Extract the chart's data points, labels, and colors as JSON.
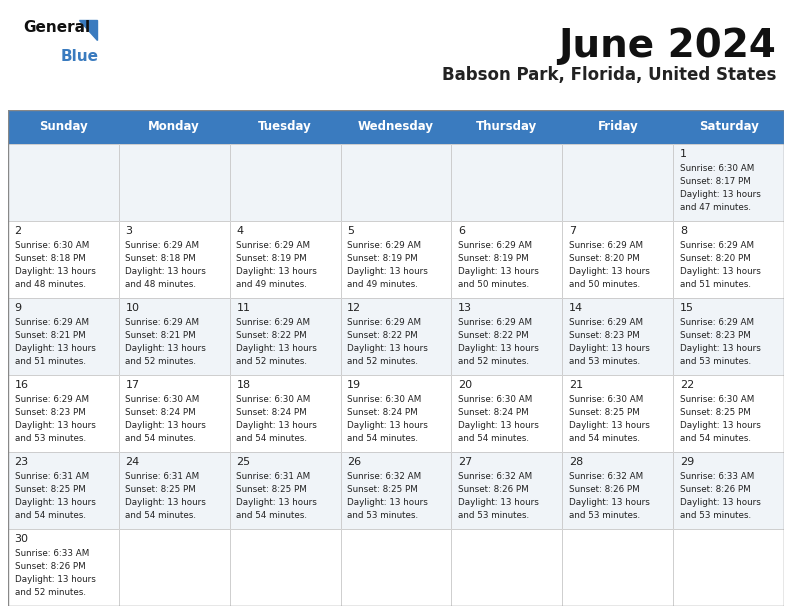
{
  "title": "June 2024",
  "subtitle": "Babson Park, Florida, United States",
  "days_of_week": [
    "Sunday",
    "Monday",
    "Tuesday",
    "Wednesday",
    "Thursday",
    "Friday",
    "Saturday"
  ],
  "header_bg": "#3a7bbf",
  "header_text": "#ffffff",
  "odd_row_bg": "#f0f4f8",
  "even_row_bg": "#ffffff",
  "cell_text_color": "#222222",
  "border_color": "#aaaaaa",
  "calendar_data": [
    [
      null,
      null,
      null,
      null,
      null,
      null,
      {
        "day": 1,
        "sunrise": "6:30 AM",
        "sunset": "8:17 PM",
        "daylight": "13 hours and 47 minutes."
      }
    ],
    [
      {
        "day": 2,
        "sunrise": "6:30 AM",
        "sunset": "8:18 PM",
        "daylight": "13 hours and 48 minutes."
      },
      {
        "day": 3,
        "sunrise": "6:29 AM",
        "sunset": "8:18 PM",
        "daylight": "13 hours and 48 minutes."
      },
      {
        "day": 4,
        "sunrise": "6:29 AM",
        "sunset": "8:19 PM",
        "daylight": "13 hours and 49 minutes."
      },
      {
        "day": 5,
        "sunrise": "6:29 AM",
        "sunset": "8:19 PM",
        "daylight": "13 hours and 49 minutes."
      },
      {
        "day": 6,
        "sunrise": "6:29 AM",
        "sunset": "8:19 PM",
        "daylight": "13 hours and 50 minutes."
      },
      {
        "day": 7,
        "sunrise": "6:29 AM",
        "sunset": "8:20 PM",
        "daylight": "13 hours and 50 minutes."
      },
      {
        "day": 8,
        "sunrise": "6:29 AM",
        "sunset": "8:20 PM",
        "daylight": "13 hours and 51 minutes."
      }
    ],
    [
      {
        "day": 9,
        "sunrise": "6:29 AM",
        "sunset": "8:21 PM",
        "daylight": "13 hours and 51 minutes."
      },
      {
        "day": 10,
        "sunrise": "6:29 AM",
        "sunset": "8:21 PM",
        "daylight": "13 hours and 52 minutes."
      },
      {
        "day": 11,
        "sunrise": "6:29 AM",
        "sunset": "8:22 PM",
        "daylight": "13 hours and 52 minutes."
      },
      {
        "day": 12,
        "sunrise": "6:29 AM",
        "sunset": "8:22 PM",
        "daylight": "13 hours and 52 minutes."
      },
      {
        "day": 13,
        "sunrise": "6:29 AM",
        "sunset": "8:22 PM",
        "daylight": "13 hours and 52 minutes."
      },
      {
        "day": 14,
        "sunrise": "6:29 AM",
        "sunset": "8:23 PM",
        "daylight": "13 hours and 53 minutes."
      },
      {
        "day": 15,
        "sunrise": "6:29 AM",
        "sunset": "8:23 PM",
        "daylight": "13 hours and 53 minutes."
      }
    ],
    [
      {
        "day": 16,
        "sunrise": "6:29 AM",
        "sunset": "8:23 PM",
        "daylight": "13 hours and 53 minutes."
      },
      {
        "day": 17,
        "sunrise": "6:30 AM",
        "sunset": "8:24 PM",
        "daylight": "13 hours and 54 minutes."
      },
      {
        "day": 18,
        "sunrise": "6:30 AM",
        "sunset": "8:24 PM",
        "daylight": "13 hours and 54 minutes."
      },
      {
        "day": 19,
        "sunrise": "6:30 AM",
        "sunset": "8:24 PM",
        "daylight": "13 hours and 54 minutes."
      },
      {
        "day": 20,
        "sunrise": "6:30 AM",
        "sunset": "8:24 PM",
        "daylight": "13 hours and 54 minutes."
      },
      {
        "day": 21,
        "sunrise": "6:30 AM",
        "sunset": "8:25 PM",
        "daylight": "13 hours and 54 minutes."
      },
      {
        "day": 22,
        "sunrise": "6:30 AM",
        "sunset": "8:25 PM",
        "daylight": "13 hours and 54 minutes."
      }
    ],
    [
      {
        "day": 23,
        "sunrise": "6:31 AM",
        "sunset": "8:25 PM",
        "daylight": "13 hours and 54 minutes."
      },
      {
        "day": 24,
        "sunrise": "6:31 AM",
        "sunset": "8:25 PM",
        "daylight": "13 hours and 54 minutes."
      },
      {
        "day": 25,
        "sunrise": "6:31 AM",
        "sunset": "8:25 PM",
        "daylight": "13 hours and 54 minutes."
      },
      {
        "day": 26,
        "sunrise": "6:32 AM",
        "sunset": "8:25 PM",
        "daylight": "13 hours and 53 minutes."
      },
      {
        "day": 27,
        "sunrise": "6:32 AM",
        "sunset": "8:26 PM",
        "daylight": "13 hours and 53 minutes."
      },
      {
        "day": 28,
        "sunrise": "6:32 AM",
        "sunset": "8:26 PM",
        "daylight": "13 hours and 53 minutes."
      },
      {
        "day": 29,
        "sunrise": "6:33 AM",
        "sunset": "8:26 PM",
        "daylight": "13 hours and 53 minutes."
      }
    ],
    [
      {
        "day": 30,
        "sunrise": "6:33 AM",
        "sunset": "8:26 PM",
        "daylight": "13 hours and 52 minutes."
      },
      null,
      null,
      null,
      null,
      null,
      null
    ]
  ],
  "logo_text_general": "General",
  "logo_text_blue": "Blue"
}
